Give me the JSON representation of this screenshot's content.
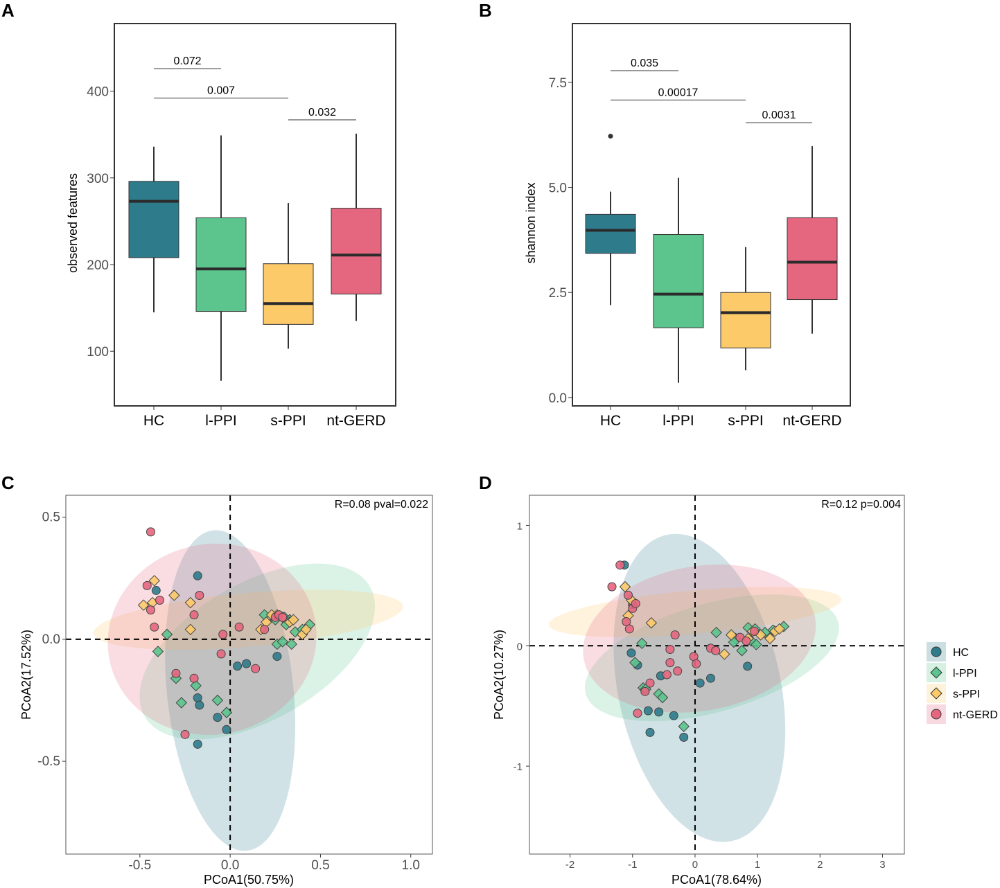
{
  "colors": {
    "HC": "#2e7b8c",
    "l-PPI": "#5bc58d",
    "s-PPI": "#fdca6a",
    "nt-GERD": "#e5667f"
  },
  "chart_data": [
    {
      "panel": "A",
      "type": "box",
      "categories": [
        "HC",
        "l-PPI",
        "s-PPI",
        "nt-GERD"
      ],
      "ylabel": "observed features",
      "ylim": [
        37,
        478
      ],
      "yticks": [
        100,
        200,
        300,
        400
      ],
      "boxes": [
        {
          "min": 145,
          "q1": 208,
          "median": 273,
          "q3": 296,
          "max": 336
        },
        {
          "min": 66,
          "q1": 146,
          "median": 195,
          "q3": 254,
          "max": 349
        },
        {
          "min": 103,
          "q1": 131,
          "median": 155,
          "q3": 201,
          "max": 271
        },
        {
          "min": 135,
          "q1": 166,
          "median": 211,
          "q3": 265,
          "max": 351
        }
      ],
      "outliers": [],
      "comparisons": [
        {
          "from": 0,
          "to": 1,
          "y": 426,
          "label": "0.072"
        },
        {
          "from": 0,
          "to": 2,
          "y": 392,
          "label": "0.007"
        },
        {
          "from": 2,
          "to": 3,
          "y": 367,
          "label": "0.032"
        }
      ]
    },
    {
      "panel": "B",
      "type": "box",
      "categories": [
        "HC",
        "l-PPI",
        "s-PPI",
        "nt-GERD"
      ],
      "ylabel": "shannon index",
      "ylim": [
        -0.2,
        8.9
      ],
      "yticks": [
        0.0,
        2.5,
        5.0,
        7.5
      ],
      "ytick_labels": [
        "0.0",
        "2.5",
        "5.0",
        "7.5"
      ],
      "boxes": [
        {
          "min": 2.2,
          "q1": 3.43,
          "median": 3.98,
          "q3": 4.36,
          "max": 4.9
        },
        {
          "min": 0.35,
          "q1": 1.66,
          "median": 2.46,
          "q3": 3.88,
          "max": 5.23
        },
        {
          "min": 0.65,
          "q1": 1.18,
          "median": 2.02,
          "q3": 2.5,
          "max": 3.58
        },
        {
          "min": 1.52,
          "q1": 2.33,
          "median": 3.22,
          "q3": 4.28,
          "max": 5.98
        }
      ],
      "outliers": [
        {
          "category": 0,
          "value": 6.22
        }
      ],
      "comparisons": [
        {
          "from": 0,
          "to": 1,
          "y": 7.78,
          "label": "0.035"
        },
        {
          "from": 0,
          "to": 2,
          "y": 7.08,
          "label": "0.00017"
        },
        {
          "from": 2,
          "to": 3,
          "y": 6.54,
          "label": "0.0031"
        }
      ]
    },
    {
      "panel": "C",
      "type": "scatter",
      "xlabel": "PCoA1(50.75%)",
      "ylabel": "PCoA2(17.52%)",
      "xlim": [
        -0.91,
        1.12
      ],
      "ylim": [
        -0.88,
        0.59
      ],
      "xticks": [
        -0.5,
        0.0,
        0.5,
        1.0
      ],
      "xtick_labels": [
        "-0.5",
        "0.0",
        "0.5",
        "1.0"
      ],
      "yticks": [
        -0.5,
        0.0,
        0.5
      ],
      "ytick_labels": [
        "-0.5",
        "0.0",
        "0.5"
      ],
      "annotation": "R=0.08 pval=0.022",
      "ellipses": [
        {
          "group": "HC",
          "cx": 0.0,
          "cy": -0.21,
          "rx": 0.35,
          "ry": 0.66,
          "angle": -6
        },
        {
          "group": "l-PPI",
          "cx": 0.15,
          "cy": -0.05,
          "rx": 0.72,
          "ry": 0.28,
          "angle": -30
        },
        {
          "group": "s-PPI",
          "cx": 0.1,
          "cy": 0.08,
          "rx": 0.86,
          "ry": 0.11,
          "angle": -5
        },
        {
          "group": "nt-GERD",
          "cx": -0.1,
          "cy": 0.0,
          "rx": 0.58,
          "ry": 0.39,
          "angle": -12
        }
      ],
      "points": {
        "HC": [
          [
            -0.18,
            0.26
          ],
          [
            -0.41,
            0.2
          ],
          [
            0.09,
            -0.1
          ],
          [
            0.04,
            -0.11
          ],
          [
            -0.18,
            -0.24
          ],
          [
            -0.17,
            -0.27
          ],
          [
            -0.07,
            -0.32
          ],
          [
            -0.02,
            -0.37
          ],
          [
            -0.18,
            -0.43
          ],
          [
            0.26,
            -0.07
          ]
        ],
        "l-PPI": [
          [
            -0.35,
            0.02
          ],
          [
            -0.4,
            -0.05
          ],
          [
            -0.3,
            -0.16
          ],
          [
            -0.19,
            -0.19
          ],
          [
            -0.27,
            -0.26
          ],
          [
            -0.07,
            -0.25
          ],
          [
            -0.02,
            -0.3
          ],
          [
            0.19,
            0.1
          ],
          [
            0.25,
            0.08
          ],
          [
            0.3,
            0.09
          ],
          [
            0.31,
            0.06
          ],
          [
            0.26,
            -0.02
          ],
          [
            0.36,
            0.03
          ],
          [
            0.4,
            0.04
          ],
          [
            0.44,
            0.06
          ],
          [
            0.29,
            -0.01
          ],
          [
            0.34,
            -0.02
          ],
          [
            0.33,
            0.08
          ]
        ],
        "s-PPI": [
          [
            -0.48,
            0.14
          ],
          [
            -0.42,
            0.24
          ],
          [
            -0.43,
            0.15
          ],
          [
            -0.31,
            0.18
          ],
          [
            -0.22,
            0.15
          ],
          [
            -0.22,
            0.04
          ],
          [
            0.17,
            0.04
          ],
          [
            0.2,
            0.07
          ],
          [
            0.23,
            0.1
          ],
          [
            0.26,
            0.1
          ],
          [
            0.29,
            0.09
          ],
          [
            0.33,
            0.07
          ],
          [
            0.4,
            0.02
          ],
          [
            0.42,
            0.04
          ],
          [
            0.35,
            0.08
          ]
        ],
        "nt-GERD": [
          [
            -0.44,
            0.44
          ],
          [
            -0.46,
            0.22
          ],
          [
            -0.44,
            0.12
          ],
          [
            -0.39,
            0.16
          ],
          [
            -0.42,
            0.05
          ],
          [
            -0.17,
            0.18
          ],
          [
            -0.2,
            0.1
          ],
          [
            -0.04,
            0.02
          ],
          [
            0.05,
            0.05
          ],
          [
            0.19,
            0.04
          ],
          [
            0.25,
            0.09
          ],
          [
            0.27,
            0.1
          ],
          [
            -0.05,
            -0.06
          ],
          [
            -0.3,
            -0.14
          ],
          [
            -0.2,
            -0.16
          ],
          [
            0.14,
            -0.12
          ],
          [
            -0.25,
            -0.39
          ],
          [
            0.29,
            0.09
          ]
        ]
      }
    },
    {
      "panel": "D",
      "type": "scatter",
      "xlabel": "PCoA1(78.64%)",
      "ylabel": "PCoA2(10.27%)",
      "xlim": [
        -2.65,
        3.35
      ],
      "ylim": [
        -1.73,
        1.25
      ],
      "xticks": [
        -2,
        -1,
        0,
        1,
        2,
        3
      ],
      "xtick_labels": [
        "-2",
        "-1",
        "0",
        "1",
        "2",
        "3"
      ],
      "yticks": [
        -1,
        0,
        1
      ],
      "ytick_labels": [
        "-1",
        "0",
        "1"
      ],
      "annotation": "R=0.12 p=0.004",
      "ellipses": [
        {
          "group": "HC",
          "cx": 0.07,
          "cy": -0.35,
          "rx": 1.3,
          "ry": 1.3,
          "angle": -12
        },
        {
          "group": "l-PPI",
          "cx": 0.27,
          "cy": -0.1,
          "rx": 2.1,
          "ry": 0.45,
          "angle": -16
        },
        {
          "group": "s-PPI",
          "cx": 0.0,
          "cy": 0.28,
          "rx": 2.35,
          "ry": 0.18,
          "angle": -5
        },
        {
          "group": "nt-GERD",
          "cx": 0.07,
          "cy": 0.06,
          "rx": 1.88,
          "ry": 0.6,
          "angle": -10
        }
      ],
      "points": {
        "HC": [
          [
            -1.13,
            0.67
          ],
          [
            -1.0,
            0.34
          ],
          [
            -1.02,
            -0.06
          ],
          [
            -0.92,
            -0.16
          ],
          [
            -0.55,
            -0.25
          ],
          [
            0.25,
            -0.27
          ],
          [
            0.08,
            -0.31
          ],
          [
            0.84,
            -0.17
          ],
          [
            -0.75,
            -0.54
          ],
          [
            -0.58,
            -0.55
          ],
          [
            -0.34,
            -0.58
          ],
          [
            -0.72,
            -0.72
          ],
          [
            -0.18,
            -0.76
          ]
        ],
        "l-PPI": [
          [
            -0.85,
            0.02
          ],
          [
            -0.96,
            -0.14
          ],
          [
            -0.83,
            -0.35
          ],
          [
            -0.79,
            -0.36
          ],
          [
            -0.58,
            -0.4
          ],
          [
            -0.52,
            -0.43
          ],
          [
            -0.18,
            -0.67
          ],
          [
            0.34,
            0.11
          ],
          [
            0.65,
            0.06
          ],
          [
            0.85,
            0.15
          ],
          [
            0.96,
            0.14
          ],
          [
            1.12,
            0.11
          ],
          [
            1.25,
            0.13
          ],
          [
            0.75,
            -0.04
          ],
          [
            0.9,
            0.04
          ],
          [
            0.98,
            0.01
          ],
          [
            0.62,
            0.03
          ],
          [
            1.42,
            0.16
          ]
        ],
        "s-PPI": [
          [
            -1.12,
            0.49
          ],
          [
            -1.02,
            0.38
          ],
          [
            -1.07,
            0.25
          ],
          [
            -0.7,
            0.19
          ],
          [
            0.47,
            -0.07
          ],
          [
            0.58,
            0.09
          ],
          [
            0.85,
            0.06
          ],
          [
            0.92,
            0.12
          ],
          [
            1.05,
            0.09
          ],
          [
            1.2,
            0.06
          ],
          [
            1.28,
            0.12
          ],
          [
            1.35,
            0.14
          ]
        ],
        "nt-GERD": [
          [
            -1.2,
            0.67
          ],
          [
            -1.33,
            0.49
          ],
          [
            -1.07,
            0.42
          ],
          [
            -1.0,
            0.31
          ],
          [
            -0.95,
            0.35
          ],
          [
            -1.1,
            0.2
          ],
          [
            -1.05,
            0.14
          ],
          [
            -0.32,
            0.09
          ],
          [
            -0.4,
            -0.03
          ],
          [
            -0.4,
            -0.14
          ],
          [
            -0.02,
            -0.09
          ],
          [
            -0.28,
            -0.21
          ],
          [
            -0.45,
            -0.24
          ],
          [
            0.02,
            -0.15
          ],
          [
            0.25,
            -0.02
          ],
          [
            0.33,
            -0.04
          ],
          [
            0.72,
            0.07
          ],
          [
            0.95,
            0.12
          ],
          [
            0.82,
            0.04
          ],
          [
            -0.72,
            -0.31
          ],
          [
            -0.8,
            -0.38
          ],
          [
            -0.92,
            -0.56
          ]
        ]
      }
    }
  ],
  "legend": {
    "items": [
      {
        "key": "HC",
        "label": "HC",
        "shape": "circle"
      },
      {
        "key": "l-PPI",
        "label": "l-PPI",
        "shape": "diamond"
      },
      {
        "key": "s-PPI",
        "label": "s-PPI",
        "shape": "diamond"
      },
      {
        "key": "nt-GERD",
        "label": "nt-GERD",
        "shape": "circle"
      }
    ]
  }
}
